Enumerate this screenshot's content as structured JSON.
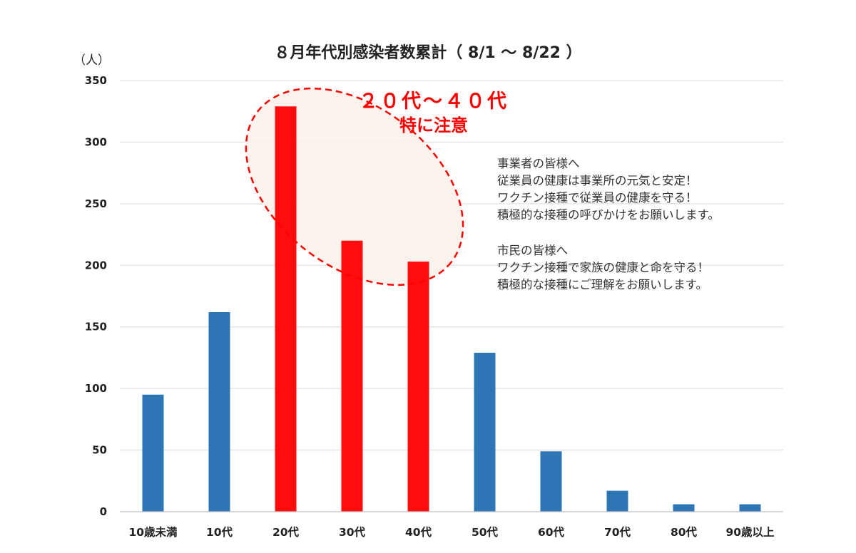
{
  "chart_data": {
    "type": "bar",
    "title": "８月年代別感染者数累計（ 8/1 〜 8/22 ）",
    "ylabel": "（人）",
    "categories": [
      "10歳未満",
      "10代",
      "20代",
      "30代",
      "40代",
      "50代",
      "60代",
      "70代",
      "80代",
      "90歳以上"
    ],
    "values": [
      95,
      162,
      329,
      220,
      203,
      129,
      49,
      17,
      6,
      6
    ],
    "highlighted": [
      "20代",
      "30代",
      "40代"
    ],
    "ylim": [
      0,
      350
    ],
    "yticks": [
      0,
      50,
      100,
      150,
      200,
      250,
      300,
      350
    ],
    "grid": true,
    "colors": {
      "default": "#2e75b6",
      "highlight": "#ff0000",
      "annotation": "#ff0000",
      "annotation_fill": "#fbf1ea"
    },
    "annotation": {
      "line1": "２０代〜４０代",
      "line2": "特に注意"
    }
  },
  "messages": {
    "business": [
      "事業者の皆様へ",
      "従業員の健康は事業所の元気と安定！",
      "ワクチン接種で従業員の健康を守る！",
      "積極的な接種の呼びかけをお願いします。"
    ],
    "citizens": [
      "市民の皆様へ",
      "ワクチン接種で家族の健康と命を守る！",
      "積極的な接種にご理解をお願いします。"
    ]
  }
}
